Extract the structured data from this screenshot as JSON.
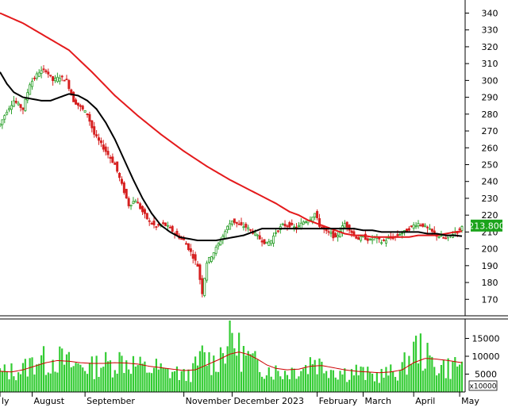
{
  "chart_data": {
    "type": "candlestick",
    "price_panel": {
      "y_ticks": [
        170,
        180,
        190,
        200,
        210,
        220,
        230,
        240,
        250,
        260,
        270,
        280,
        290,
        300,
        310,
        320,
        330,
        340
      ],
      "ylim": [
        164,
        344
      ],
      "last_price_label": "213.800",
      "last_price": 213.8,
      "grid": false
    },
    "volume_panel": {
      "y_ticks": [
        {
          "v": 5000,
          "label": "5000"
        },
        {
          "v": 10000,
          "label": "10000"
        },
        {
          "v": 15000,
          "label": "15000"
        }
      ],
      "ylim": [
        0,
        20000
      ],
      "unit_label": "x10000"
    },
    "x_labels": [
      {
        "label": "ly",
        "idx": 0
      },
      {
        "label": "August",
        "idx": 14
      },
      {
        "label": "September",
        "idx": 37
      },
      {
        "label": "November",
        "idx": 80
      },
      {
        "label": "December 2023",
        "idx": 101
      },
      {
        "label": "February",
        "idx": 138
      },
      {
        "label": "March",
        "idx": 158
      },
      {
        "label": "April",
        "idx": 180
      },
      {
        "label": "May",
        "idx": 200
      }
    ],
    "price_anchors": [
      [
        0,
        274
      ],
      [
        3,
        282
      ],
      [
        6,
        288
      ],
      [
        10,
        283
      ],
      [
        13,
        298
      ],
      [
        17,
        305
      ],
      [
        20,
        306
      ],
      [
        23,
        300
      ],
      [
        26,
        302
      ],
      [
        29,
        300
      ],
      [
        32,
        288
      ],
      [
        35,
        284
      ],
      [
        38,
        280
      ],
      [
        41,
        268
      ],
      [
        44,
        262
      ],
      [
        47,
        256
      ],
      [
        50,
        250
      ],
      [
        53,
        238
      ],
      [
        56,
        226
      ],
      [
        59,
        229
      ],
      [
        62,
        222
      ],
      [
        65,
        216
      ],
      [
        68,
        213
      ],
      [
        71,
        215
      ],
      [
        74,
        212
      ],
      [
        77,
        208
      ],
      [
        80,
        205
      ],
      [
        83,
        198
      ],
      [
        86,
        190
      ],
      [
        88,
        174
      ],
      [
        90,
        192
      ],
      [
        93,
        198
      ],
      [
        96,
        205
      ],
      [
        99,
        213
      ],
      [
        101,
        217
      ],
      [
        104,
        214
      ],
      [
        107,
        213
      ],
      [
        110,
        210
      ],
      [
        113,
        206
      ],
      [
        116,
        203
      ],
      [
        118,
        205
      ],
      [
        120,
        210
      ],
      [
        123,
        214
      ],
      [
        126,
        214
      ],
      [
        129,
        212
      ],
      [
        132,
        216
      ],
      [
        135,
        218
      ],
      [
        137,
        221
      ],
      [
        139,
        214
      ],
      [
        142,
        210
      ],
      [
        144,
        209
      ],
      [
        146,
        206
      ],
      [
        148,
        211
      ],
      [
        150,
        215
      ],
      [
        152,
        212
      ],
      [
        154,
        208
      ],
      [
        156,
        206
      ],
      [
        158,
        207
      ],
      [
        161,
        205
      ],
      [
        163,
        207
      ],
      [
        166,
        204
      ],
      [
        169,
        206
      ],
      [
        172,
        207
      ],
      [
        174,
        209
      ],
      [
        176,
        210
      ],
      [
        178,
        212
      ],
      [
        180,
        214
      ],
      [
        182,
        215
      ],
      [
        184,
        214
      ],
      [
        186,
        212
      ],
      [
        188,
        210
      ],
      [
        190,
        208
      ],
      [
        192,
        207
      ],
      [
        194,
        206
      ],
      [
        196,
        208
      ],
      [
        198,
        210
      ],
      [
        200,
        211
      ],
      [
        201,
        213.8
      ]
    ],
    "ma_black": [
      [
        0,
        305
      ],
      [
        3,
        298
      ],
      [
        6,
        293
      ],
      [
        10,
        290
      ],
      [
        14,
        289
      ],
      [
        18,
        288
      ],
      [
        22,
        288
      ],
      [
        26,
        290
      ],
      [
        30,
        292
      ],
      [
        34,
        291
      ],
      [
        38,
        288
      ],
      [
        42,
        283
      ],
      [
        46,
        275
      ],
      [
        50,
        265
      ],
      [
        54,
        253
      ],
      [
        58,
        241
      ],
      [
        62,
        230
      ],
      [
        66,
        221
      ],
      [
        70,
        214
      ],
      [
        74,
        210
      ],
      [
        78,
        207
      ],
      [
        82,
        206
      ],
      [
        86,
        205
      ],
      [
        90,
        205
      ],
      [
        94,
        205
      ],
      [
        98,
        206
      ],
      [
        102,
        207
      ],
      [
        106,
        208
      ],
      [
        110,
        210
      ],
      [
        114,
        212
      ],
      [
        118,
        212
      ],
      [
        122,
        212
      ],
      [
        126,
        212
      ],
      [
        130,
        212
      ],
      [
        134,
        212
      ],
      [
        138,
        212
      ],
      [
        142,
        212
      ],
      [
        146,
        212
      ],
      [
        150,
        212
      ],
      [
        154,
        212
      ],
      [
        158,
        211
      ],
      [
        162,
        211
      ],
      [
        166,
        210
      ],
      [
        170,
        210
      ],
      [
        174,
        210
      ],
      [
        178,
        210
      ],
      [
        182,
        210
      ],
      [
        186,
        209
      ],
      [
        190,
        209
      ],
      [
        194,
        208
      ],
      [
        198,
        208
      ],
      [
        201,
        207.5
      ]
    ],
    "ma_red": [
      [
        0,
        340
      ],
      [
        10,
        334
      ],
      [
        20,
        326
      ],
      [
        30,
        318
      ],
      [
        40,
        305
      ],
      [
        50,
        291
      ],
      [
        60,
        279
      ],
      [
        70,
        268
      ],
      [
        80,
        258
      ],
      [
        90,
        249
      ],
      [
        100,
        241
      ],
      [
        110,
        234
      ],
      [
        120,
        227
      ],
      [
        126,
        222
      ],
      [
        130,
        220
      ],
      [
        134,
        217
      ],
      [
        138,
        215
      ],
      [
        142,
        213
      ],
      [
        146,
        211
      ],
      [
        150,
        209
      ],
      [
        154,
        208
      ],
      [
        158,
        208
      ],
      [
        162,
        207
      ],
      [
        166,
        207
      ],
      [
        170,
        207
      ],
      [
        174,
        207
      ],
      [
        178,
        207
      ],
      [
        182,
        208
      ],
      [
        186,
        208
      ],
      [
        190,
        208
      ],
      [
        194,
        209
      ],
      [
        198,
        210
      ],
      [
        201,
        210.5
      ]
    ],
    "volume_anchors": [
      [
        0,
        6000
      ],
      [
        6,
        6500
      ],
      [
        10,
        7000
      ],
      [
        14,
        9000
      ],
      [
        17,
        11000
      ],
      [
        20,
        9000
      ],
      [
        24,
        10500
      ],
      [
        28,
        9500
      ],
      [
        32,
        8000
      ],
      [
        36,
        8500
      ],
      [
        40,
        7500
      ],
      [
        44,
        9000
      ],
      [
        48,
        8500
      ],
      [
        52,
        10000
      ],
      [
        56,
        9500
      ],
      [
        60,
        8000
      ],
      [
        64,
        7000
      ],
      [
        68,
        7500
      ],
      [
        72,
        6000
      ],
      [
        76,
        6500
      ],
      [
        80,
        5000
      ],
      [
        84,
        6500
      ],
      [
        88,
        11000
      ],
      [
        90,
        10500
      ],
      [
        93,
        9000
      ],
      [
        96,
        12000
      ],
      [
        99,
        16000
      ],
      [
        101,
        17000
      ],
      [
        104,
        13000
      ],
      [
        107,
        11000
      ],
      [
        110,
        9000
      ],
      [
        114,
        8000
      ],
      [
        118,
        7000
      ],
      [
        122,
        6000
      ],
      [
        126,
        6500
      ],
      [
        130,
        7500
      ],
      [
        134,
        8000
      ],
      [
        136,
        11000
      ],
      [
        139,
        8500
      ],
      [
        143,
        8000
      ],
      [
        147,
        6500
      ],
      [
        151,
        6000
      ],
      [
        155,
        6500
      ],
      [
        159,
        5500
      ],
      [
        163,
        5000
      ],
      [
        167,
        5500
      ],
      [
        171,
        6000
      ],
      [
        175,
        7000
      ],
      [
        179,
        12000
      ],
      [
        182,
        14000
      ],
      [
        185,
        11000
      ],
      [
        188,
        9000
      ],
      [
        192,
        8000
      ],
      [
        196,
        7500
      ],
      [
        199,
        9000
      ],
      [
        201,
        8000
      ]
    ],
    "volume_ma_anchors": [
      [
        0,
        5800
      ],
      [
        5,
        5600
      ],
      [
        10,
        6200
      ],
      [
        15,
        7200
      ],
      [
        20,
        8200
      ],
      [
        25,
        8800
      ],
      [
        30,
        8600
      ],
      [
        35,
        8200
      ],
      [
        40,
        8000
      ],
      [
        45,
        8000
      ],
      [
        50,
        8200
      ],
      [
        55,
        8100
      ],
      [
        60,
        7800
      ],
      [
        65,
        7200
      ],
      [
        70,
        6800
      ],
      [
        75,
        6400
      ],
      [
        80,
        6000
      ],
      [
        85,
        6200
      ],
      [
        90,
        7600
      ],
      [
        95,
        9000
      ],
      [
        100,
        10600
      ],
      [
        104,
        11200
      ],
      [
        108,
        10500
      ],
      [
        112,
        9200
      ],
      [
        116,
        7600
      ],
      [
        120,
        6600
      ],
      [
        125,
        6200
      ],
      [
        130,
        6400
      ],
      [
        135,
        7200
      ],
      [
        140,
        7400
      ],
      [
        145,
        6800
      ],
      [
        150,
        6200
      ],
      [
        155,
        5800
      ],
      [
        160,
        5600
      ],
      [
        165,
        5400
      ],
      [
        170,
        5600
      ],
      [
        175,
        6200
      ],
      [
        180,
        8200
      ],
      [
        185,
        9400
      ],
      [
        190,
        9200
      ],
      [
        195,
        8800
      ],
      [
        199,
        8400
      ],
      [
        201,
        8200
      ]
    ],
    "colors": {
      "up": "#2ca02c",
      "down": "#d62020",
      "ma_black": "#000000",
      "ma_red": "#e41a1c",
      "volume_bar": "#33cc33",
      "volume_ma": "#cc0000",
      "last_price_bg": "#1aa31a",
      "last_price_text": "#ffffff",
      "axis": "#000000"
    }
  }
}
